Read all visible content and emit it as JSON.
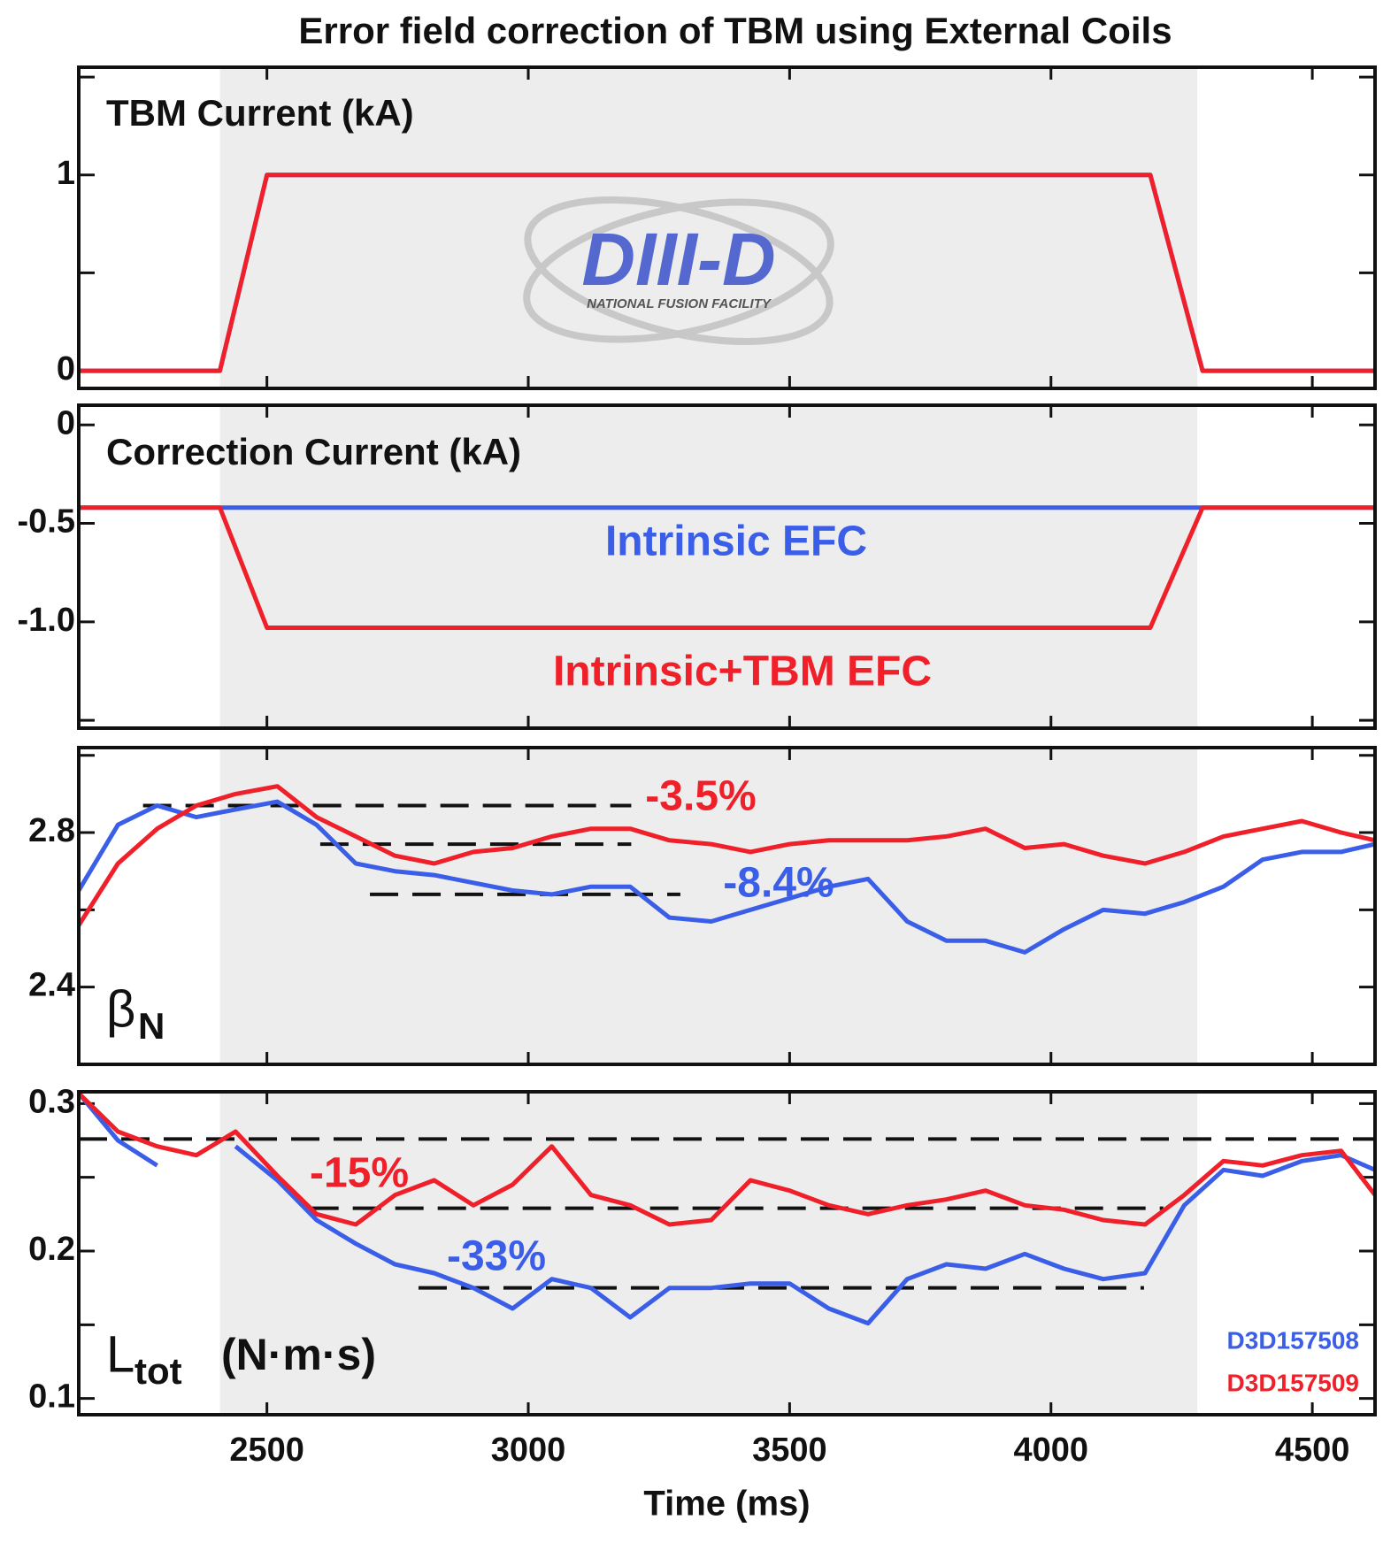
{
  "title": "Error field correction of TBM using External Coils",
  "logo": {
    "name": "DIII-D",
    "tagline": "NATIONAL FUSION FACILITY"
  },
  "chart_data": [
    {
      "type": "line",
      "title": "TBM Current (kA)",
      "x": [
        2140,
        2410,
        2500,
        4190,
        4290,
        4620
      ],
      "series": [
        {
          "color": "#3a5ee8",
          "values": [
            0,
            0,
            1,
            1,
            0,
            0
          ]
        },
        {
          "color": "#f0202a",
          "values": [
            0,
            0,
            1,
            1,
            0,
            0
          ]
        }
      ],
      "xlim": [
        2140,
        4620
      ],
      "ylim": [
        -0.09,
        1.55
      ],
      "yticks": [
        0,
        1
      ],
      "minor_yticks": [
        0.5,
        1.5
      ],
      "shade": [
        2410,
        4280
      ]
    },
    {
      "type": "line",
      "title": "Correction Current (kA)",
      "x": [
        2140,
        2410,
        2500,
        4190,
        4290,
        4620
      ],
      "series": [
        {
          "color": "#3a5ee8",
          "values": [
            -0.42,
            -0.42,
            -0.42,
            -0.42,
            -0.42,
            -0.42
          ]
        },
        {
          "color": "#f0202a",
          "values": [
            -0.42,
            -0.42,
            -1.03,
            -1.03,
            -0.42,
            -0.42
          ]
        }
      ],
      "xlim": [
        2140,
        4620
      ],
      "ylim": [
        -1.54,
        0.1
      ],
      "yticks": [
        0,
        -0.5,
        {
          "value": -1,
          "label": "-1.0"
        }
      ],
      "minor_yticks": [
        -1.5
      ],
      "shade": [
        2410,
        4280
      ],
      "annotations": [
        {
          "text": "Intrinsic EFC",
          "color": "#3a5ee8"
        },
        {
          "text": "Intrinsic+TBM EFC",
          "color": "#f0202a"
        }
      ]
    },
    {
      "type": "line",
      "ylabel": {
        "symbol": "β",
        "subscript": "N"
      },
      "x": [
        2140,
        2215,
        2290,
        2365,
        2440,
        2520,
        2595,
        2670,
        2745,
        2820,
        2895,
        2970,
        3045,
        3120,
        3195,
        3270,
        3350,
        3425,
        3500,
        3575,
        3650,
        3725,
        3800,
        3875,
        3950,
        4025,
        4100,
        4180,
        4255,
        4330,
        4405,
        4480,
        4555,
        4620
      ],
      "series": [
        {
          "color": "#3a5ee8",
          "values": [
            2.65,
            2.82,
            2.87,
            2.84,
            2.86,
            2.88,
            2.82,
            2.72,
            2.7,
            2.69,
            2.67,
            2.65,
            2.64,
            2.66,
            2.66,
            2.58,
            2.57,
            2.6,
            2.63,
            2.66,
            2.68,
            2.57,
            2.52,
            2.52,
            2.49,
            2.55,
            2.6,
            2.59,
            2.62,
            2.66,
            2.73,
            2.75,
            2.75,
            2.77
          ]
        },
        {
          "color": "#f0202a",
          "values": [
            2.56,
            2.72,
            2.81,
            2.87,
            2.9,
            2.92,
            2.84,
            2.79,
            2.74,
            2.72,
            2.75,
            2.76,
            2.79,
            2.81,
            2.81,
            2.78,
            2.77,
            2.75,
            2.77,
            2.78,
            2.78,
            2.78,
            2.79,
            2.81,
            2.76,
            2.77,
            2.74,
            2.72,
            2.75,
            2.79,
            2.81,
            2.83,
            2.8,
            2.78
          ]
        }
      ],
      "xlim": [
        2140,
        4620
      ],
      "ylim": [
        2.2,
        3.02
      ],
      "yticks": [
        2.4,
        2.8
      ],
      "minor_yticks": [
        2.6,
        3.0
      ],
      "shade": [
        2410,
        4280
      ],
      "reference_lines": [
        {
          "y": 2.87,
          "x": [
            2263,
            3197
          ]
        },
        {
          "y": 2.77,
          "x": [
            2602,
            3197
          ]
        },
        {
          "y": 2.64,
          "x": [
            2697,
            3291
          ]
        }
      ],
      "annotations": [
        {
          "text": "-3.5%",
          "color": "#f0202a"
        },
        {
          "text": "-8.4%",
          "color": "#3a5ee8"
        }
      ]
    },
    {
      "type": "line",
      "ylabel": {
        "symbol": "L",
        "subscript": "tot",
        "unit": "(N·m·s)"
      },
      "xlabel": "Time (ms)",
      "x": [
        2140,
        2215,
        2290,
        2365,
        2440,
        2520,
        2595,
        2670,
        2745,
        2820,
        2895,
        2970,
        3045,
        3120,
        3195,
        3270,
        3350,
        3425,
        3500,
        3575,
        3650,
        3725,
        3800,
        3875,
        3950,
        4025,
        4100,
        4180,
        4255,
        4330,
        4405,
        4480,
        4555,
        4620
      ],
      "series": [
        {
          "name": "D3D157508",
          "color": "#3a5ee8",
          "values": [
            0.307,
            0.275,
            0.258,
            null,
            0.271,
            0.248,
            0.221,
            0.205,
            0.191,
            0.185,
            0.175,
            0.161,
            0.181,
            0.175,
            0.155,
            0.175,
            0.175,
            0.178,
            0.178,
            0.161,
            0.151,
            0.181,
            0.191,
            0.188,
            0.198,
            0.188,
            0.181,
            0.185,
            0.231,
            0.255,
            0.251,
            0.261,
            0.265,
            0.255
          ]
        },
        {
          "name": "D3D157509",
          "color": "#f0202a",
          "values": [
            0.307,
            0.281,
            0.271,
            0.265,
            0.281,
            0.251,
            0.225,
            0.218,
            0.238,
            0.248,
            0.231,
            0.245,
            0.271,
            0.238,
            0.231,
            0.218,
            0.221,
            0.248,
            0.241,
            0.231,
            0.225,
            0.231,
            0.235,
            0.241,
            0.231,
            0.228,
            0.221,
            0.218,
            0.238,
            0.261,
            0.258,
            0.265,
            0.268,
            0.238
          ]
        }
      ],
      "xlim": [
        2140,
        4620
      ],
      "ylim": [
        0.089,
        0.308
      ],
      "yticks": [
        0.1,
        0.2,
        0.3
      ],
      "minor_yticks": [
        0.15,
        0.25
      ],
      "xticks": [
        2500,
        3000,
        3500,
        4000,
        4500
      ],
      "shade": [
        2410,
        4280
      ],
      "reference_lines": [
        {
          "y": 0.276,
          "x": [
            2140,
            4620
          ]
        },
        {
          "y": 0.229,
          "x": [
            2583,
            4215
          ]
        },
        {
          "y": 0.175,
          "x": [
            2790,
            4178
          ]
        }
      ],
      "annotations": [
        {
          "text": "-15%",
          "color": "#f0202a"
        },
        {
          "text": "-33%",
          "color": "#3a5ee8"
        }
      ],
      "legend": "lower right"
    }
  ]
}
